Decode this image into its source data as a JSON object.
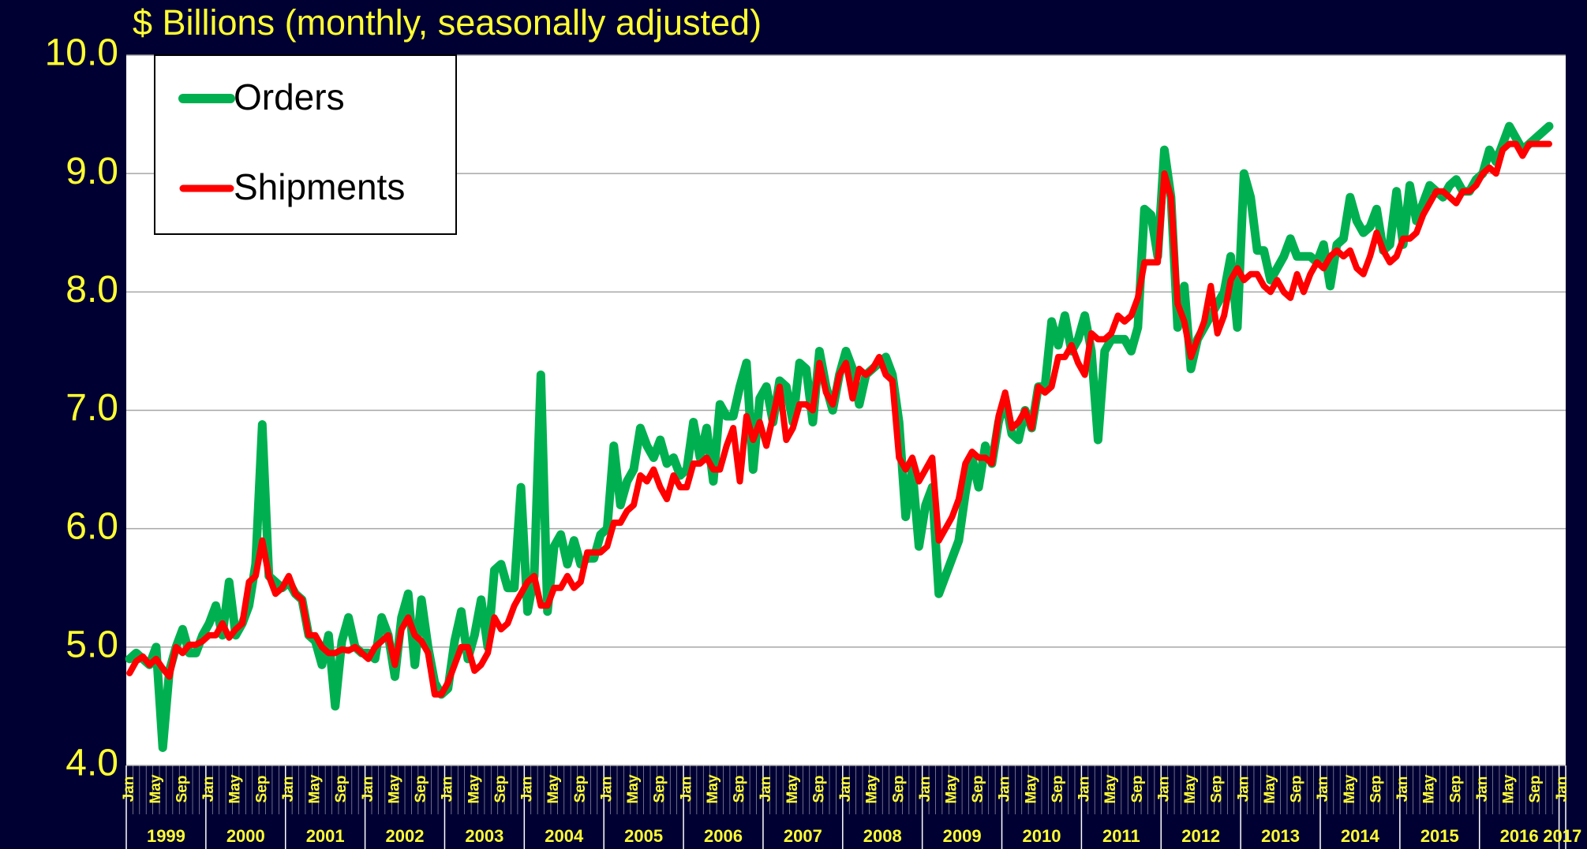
{
  "chart_data": {
    "type": "line",
    "title": "$ Billions (monthly, seasonally adjusted)",
    "categories": [
      "Jan",
      null,
      null,
      null,
      "May",
      null,
      null,
      null,
      "Sep",
      null,
      null,
      null,
      "Jan",
      null,
      null,
      null,
      "May",
      null,
      null,
      null,
      "Sep",
      null,
      null,
      null,
      "Jan",
      null,
      null,
      null,
      "May",
      null,
      null,
      null,
      "Sep",
      null,
      null,
      null,
      "Jan",
      null,
      null,
      null,
      "May",
      null,
      null,
      null,
      "Sep",
      null,
      null,
      null,
      "Jan",
      null,
      null,
      null,
      "May",
      null,
      null,
      null,
      "Sep",
      null,
      null,
      null,
      "Jan",
      null,
      null,
      null,
      "May",
      null,
      null,
      null,
      "Sep",
      null,
      null,
      null,
      "Jan",
      null,
      null,
      null,
      "May",
      null,
      null,
      null,
      "Sep",
      null,
      null,
      null,
      "Jan",
      null,
      null,
      null,
      "May",
      null,
      null,
      null,
      "Sep",
      null,
      null,
      null,
      "Jan",
      null,
      null,
      null,
      "May",
      null,
      null,
      null,
      "Sep",
      null,
      null,
      null,
      "Jan",
      null,
      null,
      null,
      "May",
      null,
      null,
      null,
      "Sep",
      null,
      null,
      null,
      "Jan",
      null,
      null,
      null,
      "May",
      null,
      null,
      null,
      "Sep",
      null,
      null,
      null,
      "Jan",
      null,
      null,
      null,
      "May",
      null,
      null,
      null,
      "Sep",
      null,
      null,
      null,
      "Jan",
      null,
      null,
      null,
      "May",
      null,
      null,
      null,
      "Sep",
      null,
      null,
      null,
      "Jan",
      null,
      null,
      null,
      "May",
      null,
      null,
      null,
      "Sep",
      null,
      null,
      null,
      "Jan",
      null,
      null,
      null,
      "May",
      null,
      null,
      null,
      "Sep",
      null,
      null,
      null,
      "Jan",
      null,
      null,
      null,
      "May",
      null,
      null,
      null,
      "Sep",
      null,
      null,
      null,
      "Jan",
      null,
      null,
      null,
      "May",
      null,
      null,
      null,
      "Sep",
      null,
      null,
      null,
      "Jan",
      null,
      null,
      null,
      "May",
      null,
      null,
      null,
      "Sep",
      null,
      null,
      null,
      "Jan"
    ],
    "year_labels": [
      "1999",
      "2000",
      "2001",
      "2002",
      "2003",
      "2004",
      "2005",
      "2006",
      "2007",
      "2008",
      "2009",
      "2010",
      "2011",
      "2012",
      "2013",
      "2014",
      "2015",
      "2016",
      "2017"
    ],
    "series": [
      {
        "name": "Orders",
        "color": "#00b050",
        "values": [
          4.9,
          4.95,
          4.9,
          4.85,
          5.0,
          4.15,
          4.8,
          5.0,
          5.15,
          4.95,
          4.95,
          5.1,
          5.2,
          5.35,
          5.1,
          5.55,
          5.1,
          5.2,
          5.35,
          5.7,
          6.88,
          5.6,
          5.55,
          5.5,
          5.55,
          5.45,
          5.4,
          5.1,
          5.05,
          4.85,
          5.1,
          4.5,
          5.05,
          5.25,
          5.0,
          4.95,
          4.95,
          4.9,
          5.25,
          5.1,
          4.75,
          5.25,
          5.45,
          4.85,
          5.4,
          5.0,
          4.7,
          4.6,
          4.65,
          5.05,
          5.3,
          4.9,
          5.1,
          5.4,
          5.0,
          5.65,
          5.7,
          5.5,
          5.5,
          6.35,
          5.3,
          5.6,
          7.3,
          5.3,
          5.85,
          5.95,
          5.7,
          5.9,
          5.7,
          5.75,
          5.75,
          5.95,
          6.0,
          6.7,
          6.2,
          6.4,
          6.5,
          6.85,
          6.7,
          6.6,
          6.75,
          6.55,
          6.6,
          6.45,
          6.5,
          6.9,
          6.6,
          6.85,
          6.4,
          7.05,
          6.95,
          6.95,
          7.2,
          7.4,
          6.5,
          7.1,
          7.2,
          6.9,
          7.25,
          7.2,
          6.9,
          7.4,
          7.35,
          6.9,
          7.5,
          7.2,
          7.0,
          7.3,
          7.5,
          7.35,
          7.05,
          7.3,
          7.35,
          7.4,
          7.45,
          7.3,
          6.9,
          6.1,
          6.5,
          5.85,
          6.2,
          6.35,
          5.45,
          5.6,
          5.75,
          5.9,
          6.3,
          6.6,
          6.35,
          6.7,
          6.55,
          6.9,
          7.1,
          6.8,
          6.75,
          7.0,
          6.85,
          7.2,
          7.2,
          7.75,
          7.55,
          7.8,
          7.5,
          7.6,
          7.8,
          7.5,
          6.75,
          7.5,
          7.6,
          7.6,
          7.6,
          7.5,
          7.7,
          8.7,
          8.65,
          8.3,
          9.2,
          8.8,
          7.7,
          8.05,
          7.35,
          7.6,
          7.7,
          7.8,
          7.9,
          8.0,
          8.3,
          7.7,
          9.0,
          8.8,
          8.35,
          8.35,
          8.1,
          8.2,
          8.3,
          8.45,
          8.3,
          8.3,
          8.3,
          8.25,
          8.4,
          8.05,
          8.4,
          8.45,
          8.8,
          8.6,
          8.5,
          8.55,
          8.7,
          8.35,
          8.4,
          8.85,
          8.4,
          8.9,
          8.6,
          8.75,
          8.9,
          8.85,
          8.8,
          8.9,
          8.95,
          8.85,
          8.85,
          8.95,
          9.0,
          9.2,
          9.1,
          9.25,
          9.4,
          9.3,
          9.2,
          9.25,
          9.3,
          9.35,
          9.4,
          null,
          null
        ]
      },
      {
        "name": "Shipments",
        "color": "#ff0000",
        "values": [
          4.78,
          4.88,
          4.92,
          4.85,
          4.9,
          4.82,
          4.75,
          5.0,
          4.95,
          5.02,
          5.02,
          5.05,
          5.1,
          5.1,
          5.2,
          5.08,
          5.15,
          5.2,
          5.55,
          5.6,
          5.9,
          5.6,
          5.45,
          5.5,
          5.6,
          5.45,
          5.4,
          5.1,
          5.1,
          5.0,
          4.95,
          4.95,
          4.98,
          4.97,
          5.0,
          4.95,
          4.9,
          5.0,
          5.05,
          5.1,
          4.85,
          5.15,
          5.25,
          5.1,
          5.05,
          4.95,
          4.6,
          4.6,
          4.7,
          4.85,
          5.0,
          5.0,
          4.8,
          4.85,
          4.95,
          5.25,
          5.15,
          5.2,
          5.35,
          5.45,
          5.55,
          5.6,
          5.35,
          5.35,
          5.5,
          5.5,
          5.6,
          5.5,
          5.55,
          5.8,
          5.8,
          5.8,
          5.85,
          6.05,
          6.05,
          6.15,
          6.2,
          6.45,
          6.4,
          6.5,
          6.35,
          6.25,
          6.45,
          6.35,
          6.35,
          6.55,
          6.55,
          6.6,
          6.5,
          6.5,
          6.7,
          6.85,
          6.4,
          6.95,
          6.75,
          6.9,
          6.7,
          6.95,
          7.2,
          6.75,
          6.85,
          7.05,
          7.05,
          7.0,
          7.4,
          7.15,
          7.05,
          7.3,
          7.4,
          7.1,
          7.35,
          7.3,
          7.35,
          7.45,
          7.3,
          7.25,
          6.6,
          6.5,
          6.6,
          6.4,
          6.5,
          6.6,
          5.9,
          6.0,
          6.1,
          6.25,
          6.55,
          6.65,
          6.6,
          6.6,
          6.55,
          6.95,
          7.15,
          6.85,
          6.9,
          7.0,
          6.85,
          7.2,
          7.15,
          7.2,
          7.45,
          7.45,
          7.55,
          7.4,
          7.3,
          7.65,
          7.6,
          7.6,
          7.65,
          7.8,
          7.75,
          7.8,
          7.95,
          8.25,
          8.25,
          8.25,
          9.0,
          8.8,
          7.9,
          7.75,
          7.45,
          7.6,
          7.75,
          8.05,
          7.65,
          7.8,
          8.1,
          8.2,
          8.1,
          8.15,
          8.15,
          8.05,
          8.0,
          8.1,
          8.0,
          7.95,
          8.15,
          8.0,
          8.15,
          8.25,
          8.2,
          8.3,
          8.35,
          8.3,
          8.35,
          8.2,
          8.15,
          8.3,
          8.5,
          8.35,
          8.25,
          8.3,
          8.45,
          8.45,
          8.5,
          8.65,
          8.75,
          8.85,
          8.85,
          8.8,
          8.75,
          8.85,
          8.85,
          8.9,
          9.0,
          9.05,
          9.0,
          9.2,
          9.25,
          9.25,
          9.15,
          9.25,
          9.25,
          9.25,
          9.25,
          null,
          null
        ]
      }
    ],
    "ylim": [
      4,
      10
    ],
    "yticks": [
      {
        "value": 4,
        "label": "4.0"
      },
      {
        "value": 5,
        "label": "5.0"
      },
      {
        "value": 6,
        "label": "6.0"
      },
      {
        "value": 7,
        "label": "7.0"
      },
      {
        "value": 8,
        "label": "8.0"
      },
      {
        "value": 9,
        "label": "9.0"
      },
      {
        "value": 10,
        "label": "10.0"
      }
    ],
    "grid": true,
    "legend_loc": "upper left"
  }
}
